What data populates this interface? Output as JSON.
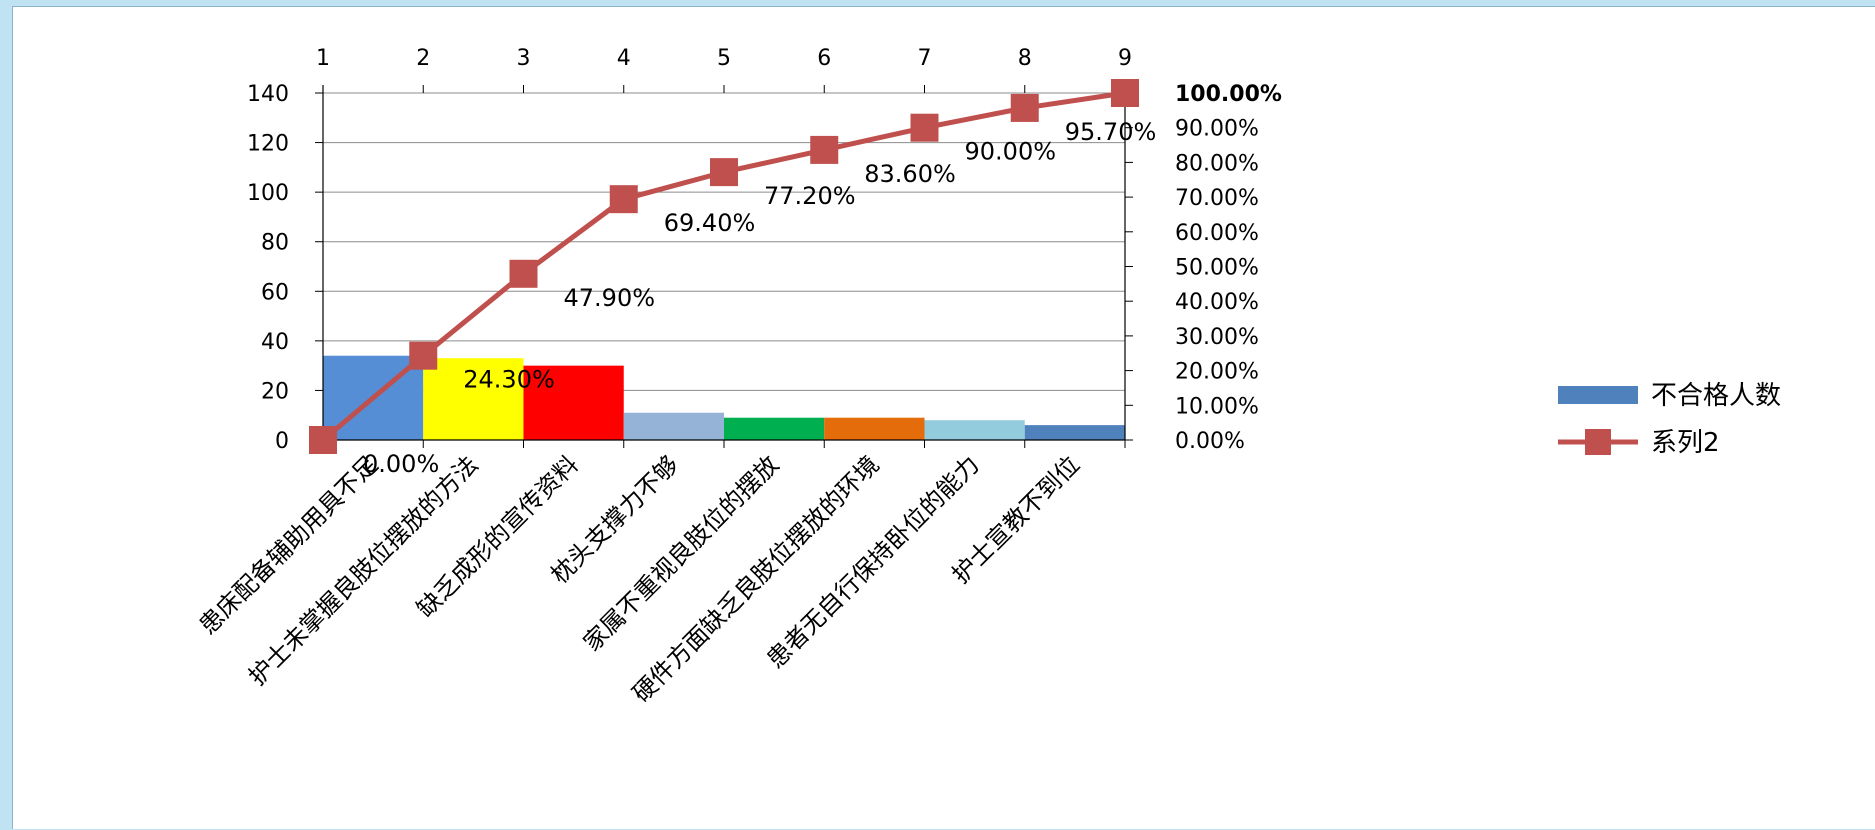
{
  "chart_data": {
    "type": "bar",
    "categories": [
      "患床配备辅助用具不足",
      "护士未掌握良肢位摆放的方法",
      "缺乏成形的宣传资料",
      "枕头支撑力不够",
      "家属不重视良肢位的摆放",
      "硬件方面缺乏良肢位摆放的环境",
      "患者无自行保持卧位的能力",
      "护士宣教不到位"
    ],
    "top_axis_ticks": [
      "1",
      "2",
      "3",
      "4",
      "5",
      "6",
      "7",
      "8",
      "9"
    ],
    "series": [
      {
        "name": "不合格人数",
        "type": "bar",
        "values": [
          34,
          33,
          30,
          11,
          9,
          9,
          8,
          6
        ],
        "colors": [
          "#558ed5",
          "#ffff00",
          "#ff0000",
          "#95b3d7",
          "#00b050",
          "#e46c0a",
          "#93cddd",
          "#4f81bd"
        ]
      },
      {
        "name": "系列2",
        "type": "line",
        "x": [
          1,
          2,
          3,
          4,
          5,
          6,
          7,
          8,
          9
        ],
        "values": [
          0,
          24.3,
          47.9,
          69.4,
          77.2,
          83.6,
          90.0,
          95.7,
          100.0
        ],
        "labels": [
          "0.00%",
          "24.30%",
          "47.90%",
          "69.40%",
          "77.20%",
          "83.60%",
          "90.00%",
          "95.70%",
          "100.00%"
        ],
        "color": "#c0504d"
      }
    ],
    "y_left": {
      "ylim": [
        0,
        140
      ],
      "ticks": [
        "0",
        "20",
        "40",
        "60",
        "80",
        "100",
        "120",
        "140"
      ]
    },
    "y_right": {
      "ylim": [
        0,
        100
      ],
      "ticks": [
        "0.00%",
        "10.00%",
        "20.00%",
        "30.00%",
        "40.00%",
        "50.00%",
        "60.00%",
        "70.00%",
        "80.00%",
        "90.00%",
        "100.00%"
      ]
    },
    "grid": true,
    "legend_position": "right"
  }
}
